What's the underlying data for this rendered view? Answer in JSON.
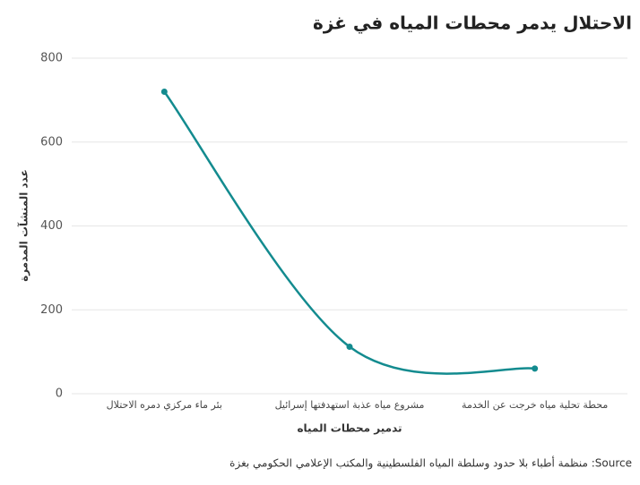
{
  "chart_data": {
    "type": "line",
    "title": "الاحتلال يدمر محطات المياه في غزة",
    "x_label": "تدمير محطات المياه",
    "y_label": "عدد المنشآت المدمرة",
    "source": "Source: منظمة أطباء بلا حدود وسلطة المياه الفلسطينية والمكتب الإعلامي الحكومي بغزة",
    "categories": [
      "بئر ماء مركزي دمره الاحتلال",
      "مشروع مياه عذبة استهدفتها إسرائيل",
      "محطة تحلية مياه خرجت عن الخدمة"
    ],
    "values": [
      720,
      112,
      60
    ],
    "color": "#138b8f",
    "ylim": [
      0,
      800
    ],
    "yticks": [
      0,
      200,
      400,
      600,
      800
    ],
    "grid": true
  }
}
